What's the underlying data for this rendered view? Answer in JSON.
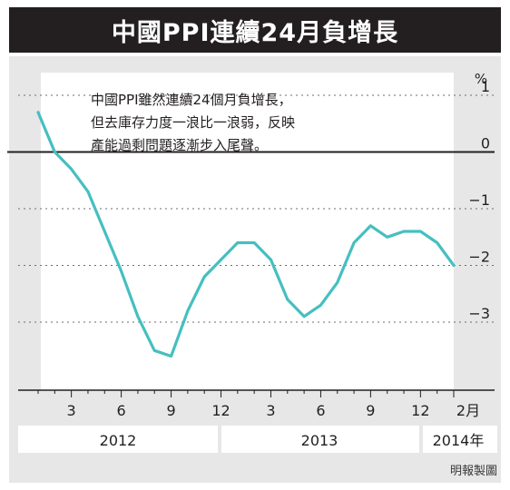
{
  "title": "中國PPI連續24月負增長",
  "note_lines": [
    "中國PPI雖然連續24個月負增長，",
    "但去庫存力度一浪比一浪弱，反映",
    "產能過剩問題逐漸步入尾聲。"
  ],
  "credit": "明報製圖",
  "colors": {
    "line": "#46bfc0",
    "banner_bg": "#231f20",
    "panel_bg": "#e7e7e8",
    "plot_bg": "#ffffff",
    "zero_line": "#231f20"
  },
  "chart_data": {
    "type": "line",
    "title": "中國PPI連續24月負增長",
    "ylabel": "%",
    "ylim": [
      -4.2,
      1.4
    ],
    "yticks": [
      1,
      0,
      -1,
      -2,
      -3
    ],
    "ytick_labels": [
      "1",
      "0",
      "−1",
      "−2",
      "−3"
    ],
    "xticks": [
      "3",
      "6",
      "9",
      "12",
      "3",
      "6",
      "9",
      "12",
      "2月"
    ],
    "year_labels": [
      "2012",
      "2013",
      "2014年"
    ],
    "grid": "dotted horizontal",
    "series": [
      {
        "x": [
          "2012-01",
          "2012-02",
          "2012-03",
          "2012-04",
          "2012-05",
          "2012-06",
          "2012-07",
          "2012-08",
          "2012-09",
          "2012-10",
          "2012-11",
          "2012-12",
          "2013-01",
          "2013-02",
          "2013-03",
          "2013-04",
          "2013-05",
          "2013-06",
          "2013-07",
          "2013-08",
          "2013-09",
          "2013-10",
          "2013-11",
          "2013-12",
          "2014-01",
          "2014-02"
        ],
        "values": [
          0.7,
          0.0,
          -0.3,
          -0.7,
          -1.4,
          -2.1,
          -2.9,
          -3.5,
          -3.6,
          -2.8,
          -2.2,
          -1.9,
          -1.6,
          -1.6,
          -1.9,
          -2.6,
          -2.9,
          -2.7,
          -2.3,
          -1.6,
          -1.3,
          -1.5,
          -1.4,
          -1.4,
          -1.6,
          -2.0
        ]
      }
    ]
  }
}
